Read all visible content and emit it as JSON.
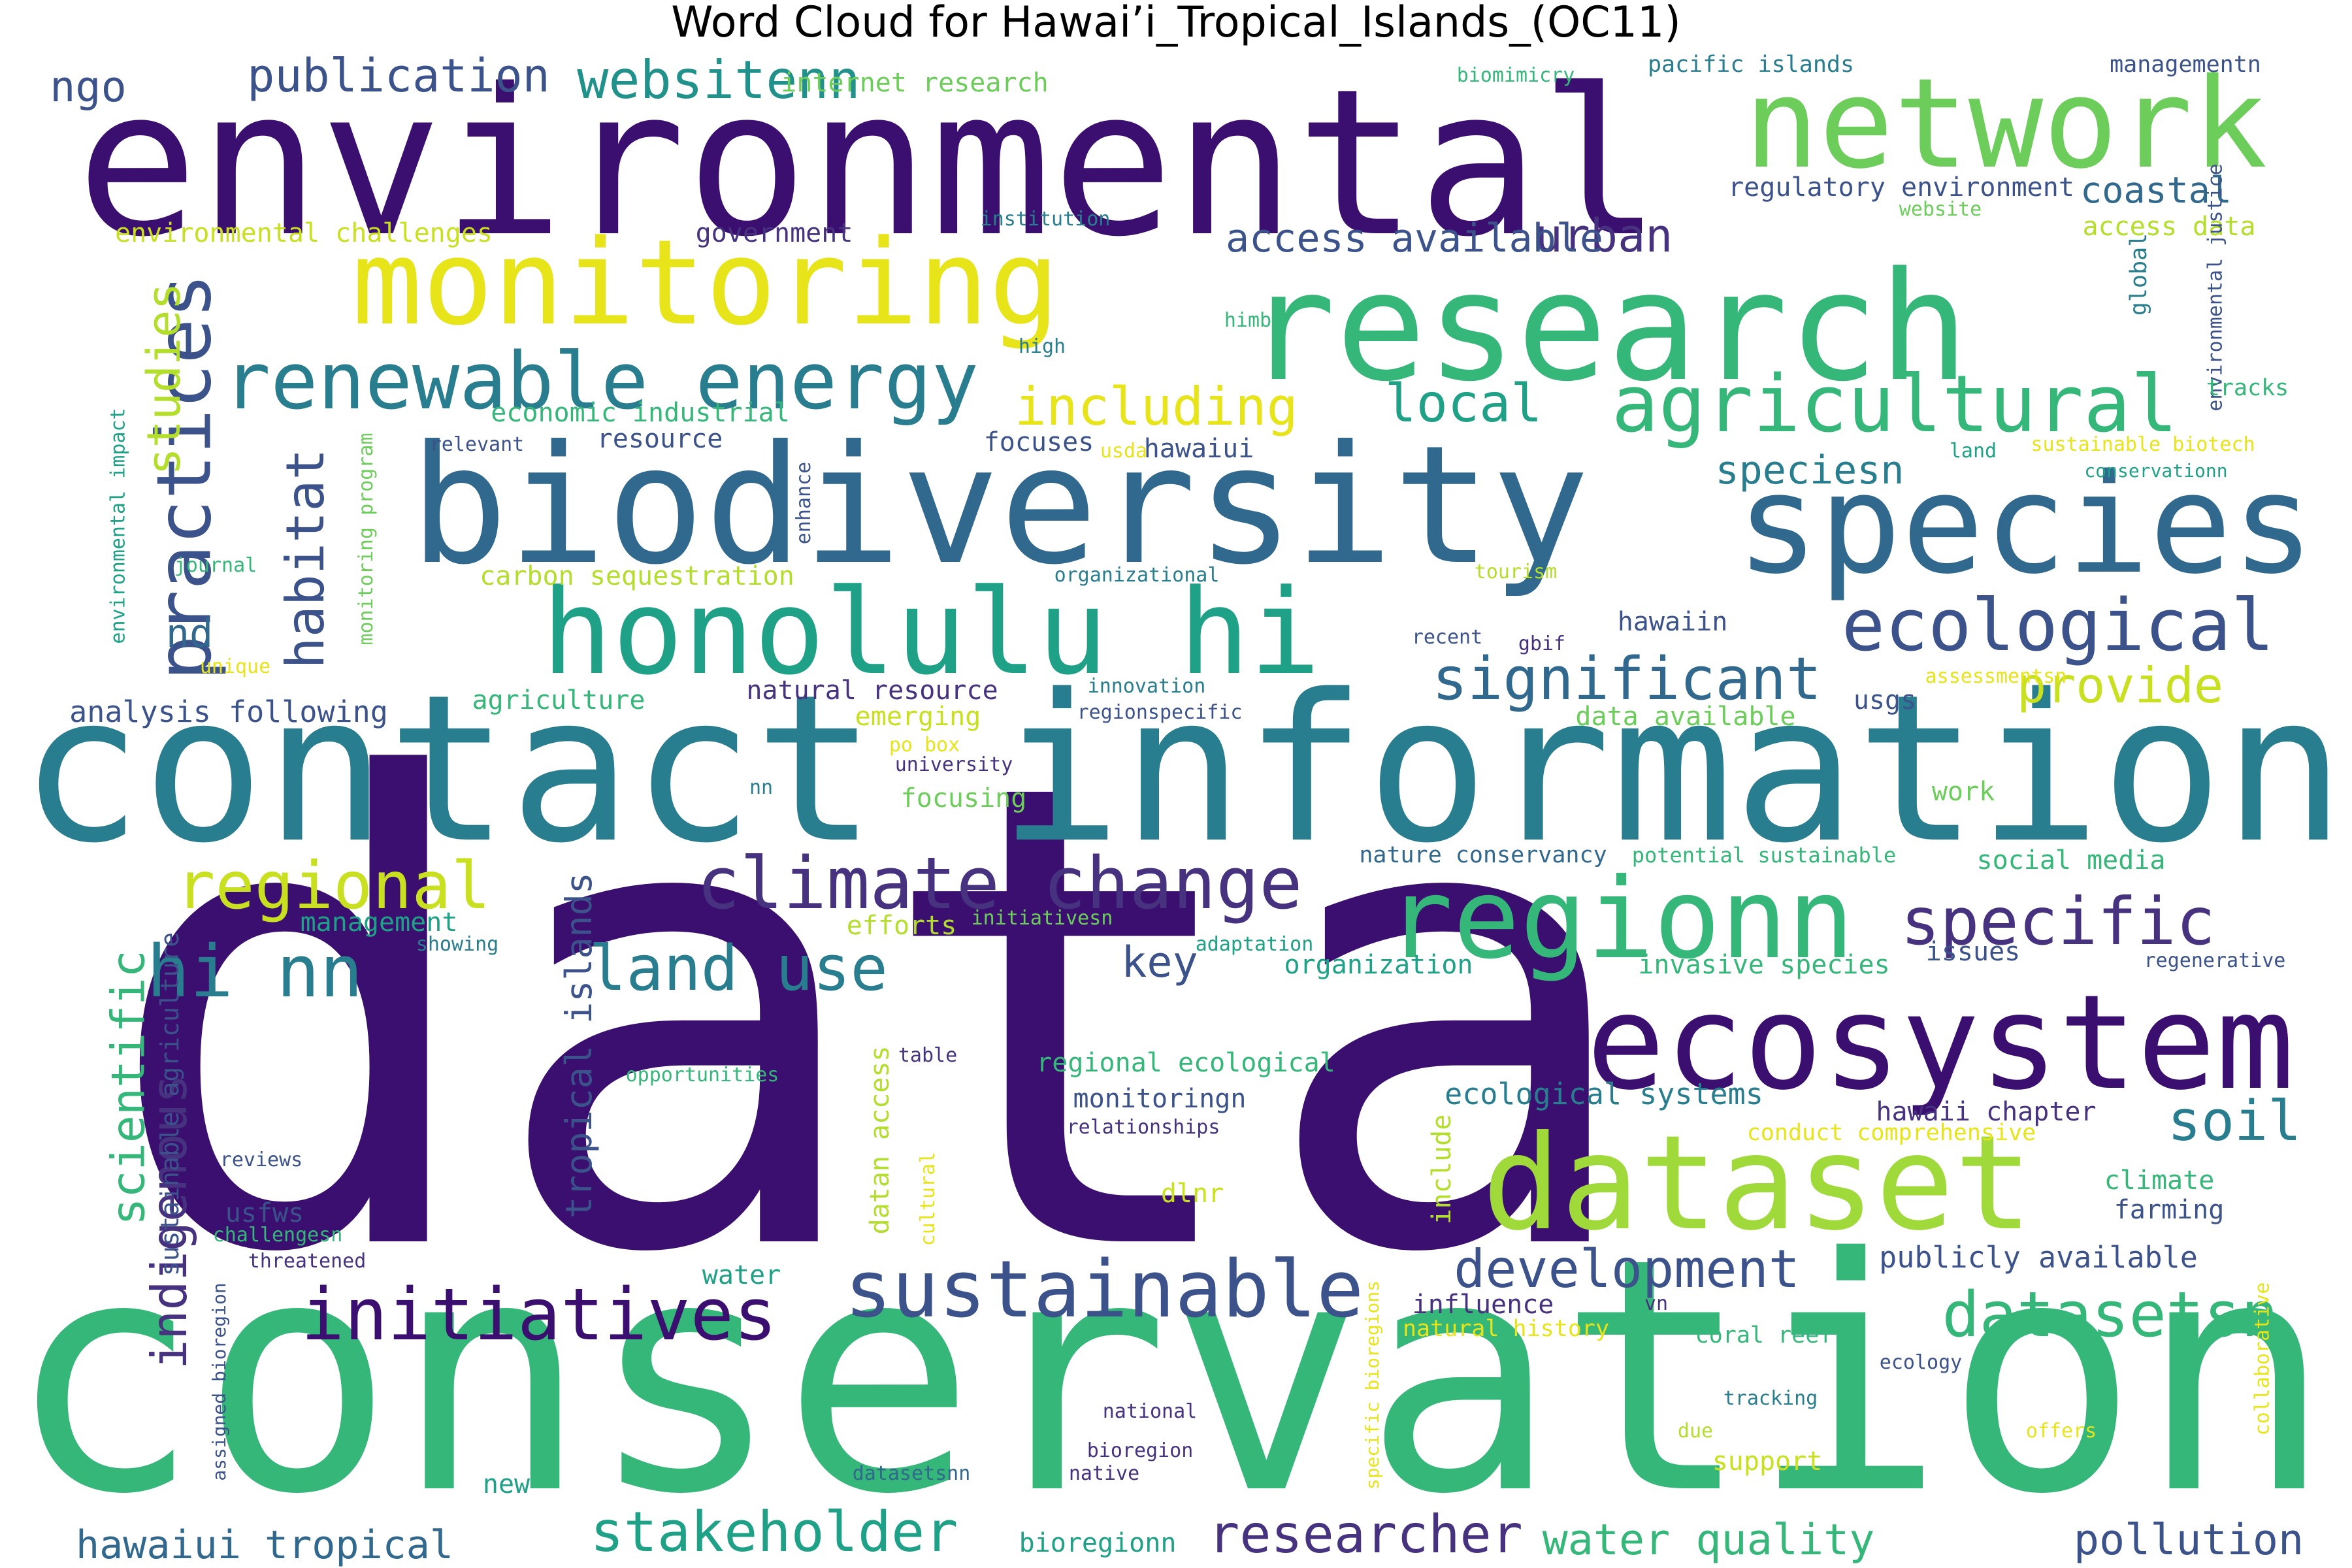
{
  "title": "Word Cloud for Hawai’i_Tropical_Islands_(OC11)",
  "palette": {
    "dp": "#3b0f70",
    "pu": "#46327e",
    "in": "#3b528b",
    "bl": "#31688e",
    "tl": "#287d8e",
    "tg": "#21918c",
    "gt": "#1fa187",
    "gr": "#35b779",
    "lg": "#6ccd5a",
    "yg": "#9fda3a",
    "ly": "#c8e020",
    "ye": "#e7e419",
    "pa": "#b4de2c"
  },
  "words": [
    {
      "t": "data",
      "c": "dp"
    },
    {
      "t": "conservation",
      "c": "gr"
    },
    {
      "t": "contact information",
      "c": "tl"
    },
    {
      "t": "environmental",
      "c": "dp"
    },
    {
      "t": "biodiversity",
      "c": "bl"
    },
    {
      "t": "research",
      "c": "gr"
    },
    {
      "t": "monitoring",
      "c": "ye"
    },
    {
      "t": "network",
      "c": "lg"
    },
    {
      "t": "species",
      "c": "bl"
    },
    {
      "t": "honolulu hi",
      "c": "gt"
    },
    {
      "t": "ecosystem",
      "c": "dp"
    },
    {
      "t": "dataset",
      "c": "yg"
    },
    {
      "t": "regionn",
      "c": "gr"
    },
    {
      "t": "renewable energy",
      "c": "tl"
    },
    {
      "t": "agricultural",
      "c": "gr"
    },
    {
      "t": "climate change",
      "c": "pu"
    },
    {
      "t": "sustainable",
      "c": "in"
    },
    {
      "t": "initiatives",
      "c": "dp"
    },
    {
      "t": "practices",
      "c": "in"
    },
    {
      "t": "ecological",
      "c": "in"
    },
    {
      "t": "significant",
      "c": "bl"
    },
    {
      "t": "specific",
      "c": "pu"
    },
    {
      "t": "regional",
      "c": "ly"
    },
    {
      "t": "hi nn",
      "c": "tl"
    },
    {
      "t": "land use",
      "c": "tl"
    },
    {
      "t": "datasetsn",
      "c": "gr"
    },
    {
      "t": "development",
      "c": "in"
    },
    {
      "t": "scientific",
      "c": "gr"
    },
    {
      "t": "habitat",
      "c": "in"
    },
    {
      "t": "stakeholder",
      "c": "gt"
    },
    {
      "t": "researcher",
      "c": "pu"
    },
    {
      "t": "including",
      "c": "ye"
    },
    {
      "t": "websitenn",
      "c": "tg"
    },
    {
      "t": "publication",
      "c": "in"
    },
    {
      "t": "local",
      "c": "gt"
    },
    {
      "t": "speciesn",
      "c": "tl"
    },
    {
      "t": "urban",
      "c": "pu"
    },
    {
      "t": "access available",
      "c": "in"
    },
    {
      "t": "soil",
      "c": "tl"
    },
    {
      "t": "provide",
      "c": "ly"
    },
    {
      "t": "indigenous",
      "c": "pu"
    },
    {
      "t": "studies",
      "c": "pa"
    },
    {
      "t": "water quality",
      "c": "gr"
    },
    {
      "t": "pollution",
      "c": "in"
    },
    {
      "t": "hawaiui tropical",
      "c": "bl"
    },
    {
      "t": "tropical islands",
      "c": "in"
    },
    {
      "t": "key",
      "c": "in"
    },
    {
      "t": "ngo",
      "c": "in"
    },
    {
      "t": "coastal",
      "c": "bl"
    },
    {
      "t": "nd",
      "c": "bl"
    },
    {
      "t": "network",
      "c": "lg"
    },
    {
      "t": "internet research",
      "c": "lg"
    },
    {
      "t": "regulatory environment",
      "c": "in"
    },
    {
      "t": "environmental challenges",
      "c": "ly"
    },
    {
      "t": "government",
      "c": "pu"
    },
    {
      "t": "access data",
      "c": "pa"
    },
    {
      "t": "economic industrial",
      "c": "gr"
    },
    {
      "t": "resource",
      "c": "in"
    },
    {
      "t": "focuses",
      "c": "in"
    },
    {
      "t": "hawaiui",
      "c": "in"
    },
    {
      "t": "carbon sequestration",
      "c": "pa"
    },
    {
      "t": "analysis following",
      "c": "in"
    },
    {
      "t": "agriculture",
      "c": "gr"
    },
    {
      "t": "natural resource",
      "c": "pu"
    },
    {
      "t": "emerging",
      "c": "ly"
    },
    {
      "t": "hawaiin",
      "c": "in"
    },
    {
      "t": "data available",
      "c": "lg"
    },
    {
      "t": "usgs",
      "c": "in"
    },
    {
      "t": "focusing",
      "c": "lg"
    },
    {
      "t": "work",
      "c": "lg"
    },
    {
      "t": "social media",
      "c": "gr"
    },
    {
      "t": "management",
      "c": "gt"
    },
    {
      "t": "efforts",
      "c": "pa"
    },
    {
      "t": "organization",
      "c": "gt"
    },
    {
      "t": "invasive species",
      "c": "gr"
    },
    {
      "t": "issues",
      "c": "in"
    },
    {
      "t": "regional ecological",
      "c": "gr"
    },
    {
      "t": "monitoringn",
      "c": "in"
    },
    {
      "t": "ecological systems",
      "c": "tl"
    },
    {
      "t": "hawaii chapter",
      "c": "pu"
    },
    {
      "t": "conduct comprehensive",
      "c": "ye"
    },
    {
      "t": "climate",
      "c": "gr"
    },
    {
      "t": "farming",
      "c": "in"
    },
    {
      "t": "publicly available",
      "c": "in"
    },
    {
      "t": "usfws",
      "c": "in"
    },
    {
      "t": "dlnr",
      "c": "ly"
    },
    {
      "t": "water",
      "c": "gt"
    },
    {
      "t": "influence",
      "c": "pu"
    },
    {
      "t": "natural history",
      "c": "ye"
    },
    {
      "t": "coral reef",
      "c": "gr"
    },
    {
      "t": "support",
      "c": "ly"
    },
    {
      "t": "new",
      "c": "gt"
    },
    {
      "t": "bioregionn",
      "c": "gt"
    },
    {
      "t": "environmental justice",
      "c": "in"
    },
    {
      "t": "global",
      "c": "tl"
    },
    {
      "t": "tracks",
      "c": "gr"
    },
    {
      "t": "sustainable biotech",
      "c": "ye"
    },
    {
      "t": "conservationn",
      "c": "gt"
    },
    {
      "t": "managementn",
      "c": "in"
    },
    {
      "t": "pacific islands",
      "c": "tl"
    },
    {
      "t": "biomimicry",
      "c": "gr"
    },
    {
      "t": "website",
      "c": "lg"
    },
    {
      "t": "institution",
      "c": "tl"
    },
    {
      "t": "himb",
      "c": "gr"
    },
    {
      "t": "high",
      "c": "tl"
    },
    {
      "t": "relevant",
      "c": "in"
    },
    {
      "t": "usda",
      "c": "ye"
    },
    {
      "t": "land",
      "c": "gt"
    },
    {
      "t": "enhance",
      "c": "in"
    },
    {
      "t": "organizational",
      "c": "tl"
    },
    {
      "t": "tourism",
      "c": "pa"
    },
    {
      "t": "recent",
      "c": "in"
    },
    {
      "t": "gbif",
      "c": "pu"
    },
    {
      "t": "innovation",
      "c": "tl"
    },
    {
      "t": "regionspecific",
      "c": "in"
    },
    {
      "t": "assessmentsn",
      "c": "ye"
    },
    {
      "t": "po box",
      "c": "ye"
    },
    {
      "t": "university",
      "c": "pu"
    },
    {
      "t": "nn",
      "c": "tl"
    },
    {
      "t": "nature conservancy",
      "c": "bl"
    },
    {
      "t": "potential sustainable",
      "c": "gr"
    },
    {
      "t": "initiativesn",
      "c": "lg"
    },
    {
      "t": "adaptation",
      "c": "gt"
    },
    {
      "t": "regenerative",
      "c": "in"
    },
    {
      "t": "showing",
      "c": "tl"
    },
    {
      "t": "opportunities",
      "c": "gr"
    },
    {
      "t": "table",
      "c": "pu"
    },
    {
      "t": "relationships",
      "c": "pu"
    },
    {
      "t": "reviews",
      "c": "in"
    },
    {
      "t": "challengesn",
      "c": "gr"
    },
    {
      "t": "threatened",
      "c": "pu"
    },
    {
      "t": "national",
      "c": "pu"
    },
    {
      "t": "bioregion",
      "c": "pu"
    },
    {
      "t": "datasetsnn",
      "c": "bl"
    },
    {
      "t": "native",
      "c": "pu"
    },
    {
      "t": "tracking",
      "c": "tl"
    },
    {
      "t": "due",
      "c": "pa"
    },
    {
      "t": "offers",
      "c": "ye"
    },
    {
      "t": "ecology",
      "c": "in"
    },
    {
      "t": "vn",
      "c": "pu"
    },
    {
      "t": "journal",
      "c": "gr"
    },
    {
      "t": "unique",
      "c": "ye"
    },
    {
      "t": "environmental impact",
      "c": "gt"
    },
    {
      "t": "monitoring program",
      "c": "lg"
    },
    {
      "t": "sustainable agriculture",
      "c": "in"
    },
    {
      "t": "assigned bioregion",
      "c": "in"
    },
    {
      "t": "datan access",
      "c": "pa"
    },
    {
      "t": "cultural",
      "c": "ye"
    },
    {
      "t": "include",
      "c": "pa"
    },
    {
      "t": "specific bioregions",
      "c": "ye"
    },
    {
      "t": "collaborative",
      "c": "ye"
    }
  ]
}
